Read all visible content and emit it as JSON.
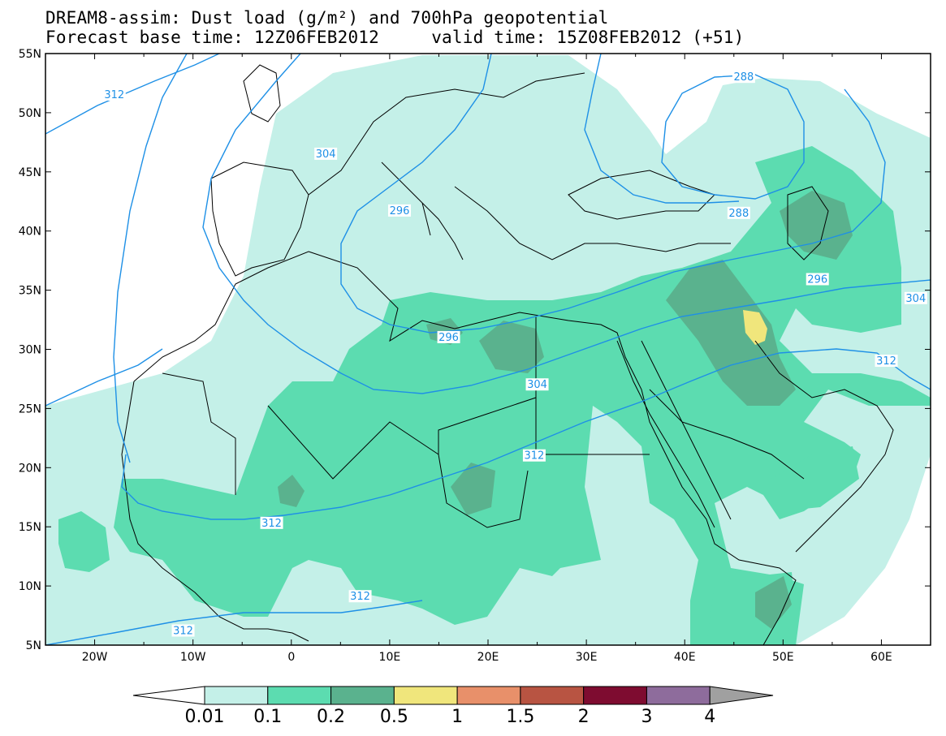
{
  "header": {
    "title_line1": "DREAM8-assim: Dust load (g/m²) and 700hPa geopotential",
    "title_line2": "Forecast base time: 12Z06FEB2012     valid time: 15Z08FEB2012 (+51)"
  },
  "axes": {
    "lon_labels": [
      "20W",
      "10W",
      "0",
      "10E",
      "20E",
      "30E",
      "40E",
      "50E",
      "60E"
    ],
    "lon_values": [
      -20,
      -10,
      0,
      10,
      20,
      30,
      40,
      50,
      60
    ],
    "lat_labels": [
      "55N",
      "50N",
      "45N",
      "40N",
      "35N",
      "30N",
      "25N",
      "20N",
      "15N",
      "10N",
      "5N"
    ],
    "lat_values": [
      55,
      50,
      45,
      40,
      35,
      30,
      25,
      20,
      15,
      10,
      5
    ],
    "lon_range": [
      -25,
      65
    ],
    "lat_range": [
      5,
      55
    ]
  },
  "colorbar": {
    "labels": [
      "0.01",
      "0.1",
      "0.2",
      "0.5",
      "1",
      "1.5",
      "2",
      "3",
      "4"
    ],
    "colors": [
      "#c4f0e8",
      "#5cdcb0",
      "#5ab28e",
      "#f0e67c",
      "#e8906a",
      "#b85442",
      "#7e0c30",
      "#8e6c9c",
      "#a0a0a0"
    ],
    "under_color": "#ffffff"
  },
  "contours": {
    "color": "#1e90e6",
    "labels": [
      {
        "text": "312",
        "lon": -18,
        "lat": 51.5
      },
      {
        "text": "304",
        "lon": 3.5,
        "lat": 46.5
      },
      {
        "text": "296",
        "lon": 11,
        "lat": 41.7
      },
      {
        "text": "288",
        "lon": 46,
        "lat": 53
      },
      {
        "text": "288",
        "lon": 45.5,
        "lat": 41.5
      },
      {
        "text": "296",
        "lon": 53.5,
        "lat": 35.9
      },
      {
        "text": "304",
        "lon": 63.5,
        "lat": 34.3
      },
      {
        "text": "312",
        "lon": 60.5,
        "lat": 29
      },
      {
        "text": "296",
        "lon": 16,
        "lat": 31
      },
      {
        "text": "304",
        "lon": 25,
        "lat": 27
      },
      {
        "text": "312",
        "lon": 24.7,
        "lat": 21
      },
      {
        "text": "312",
        "lon": -2,
        "lat": 15.3
      },
      {
        "text": "312",
        "lon": 7,
        "lat": 9.1
      },
      {
        "text": "312",
        "lon": -11,
        "lat": 6.2
      }
    ]
  }
}
